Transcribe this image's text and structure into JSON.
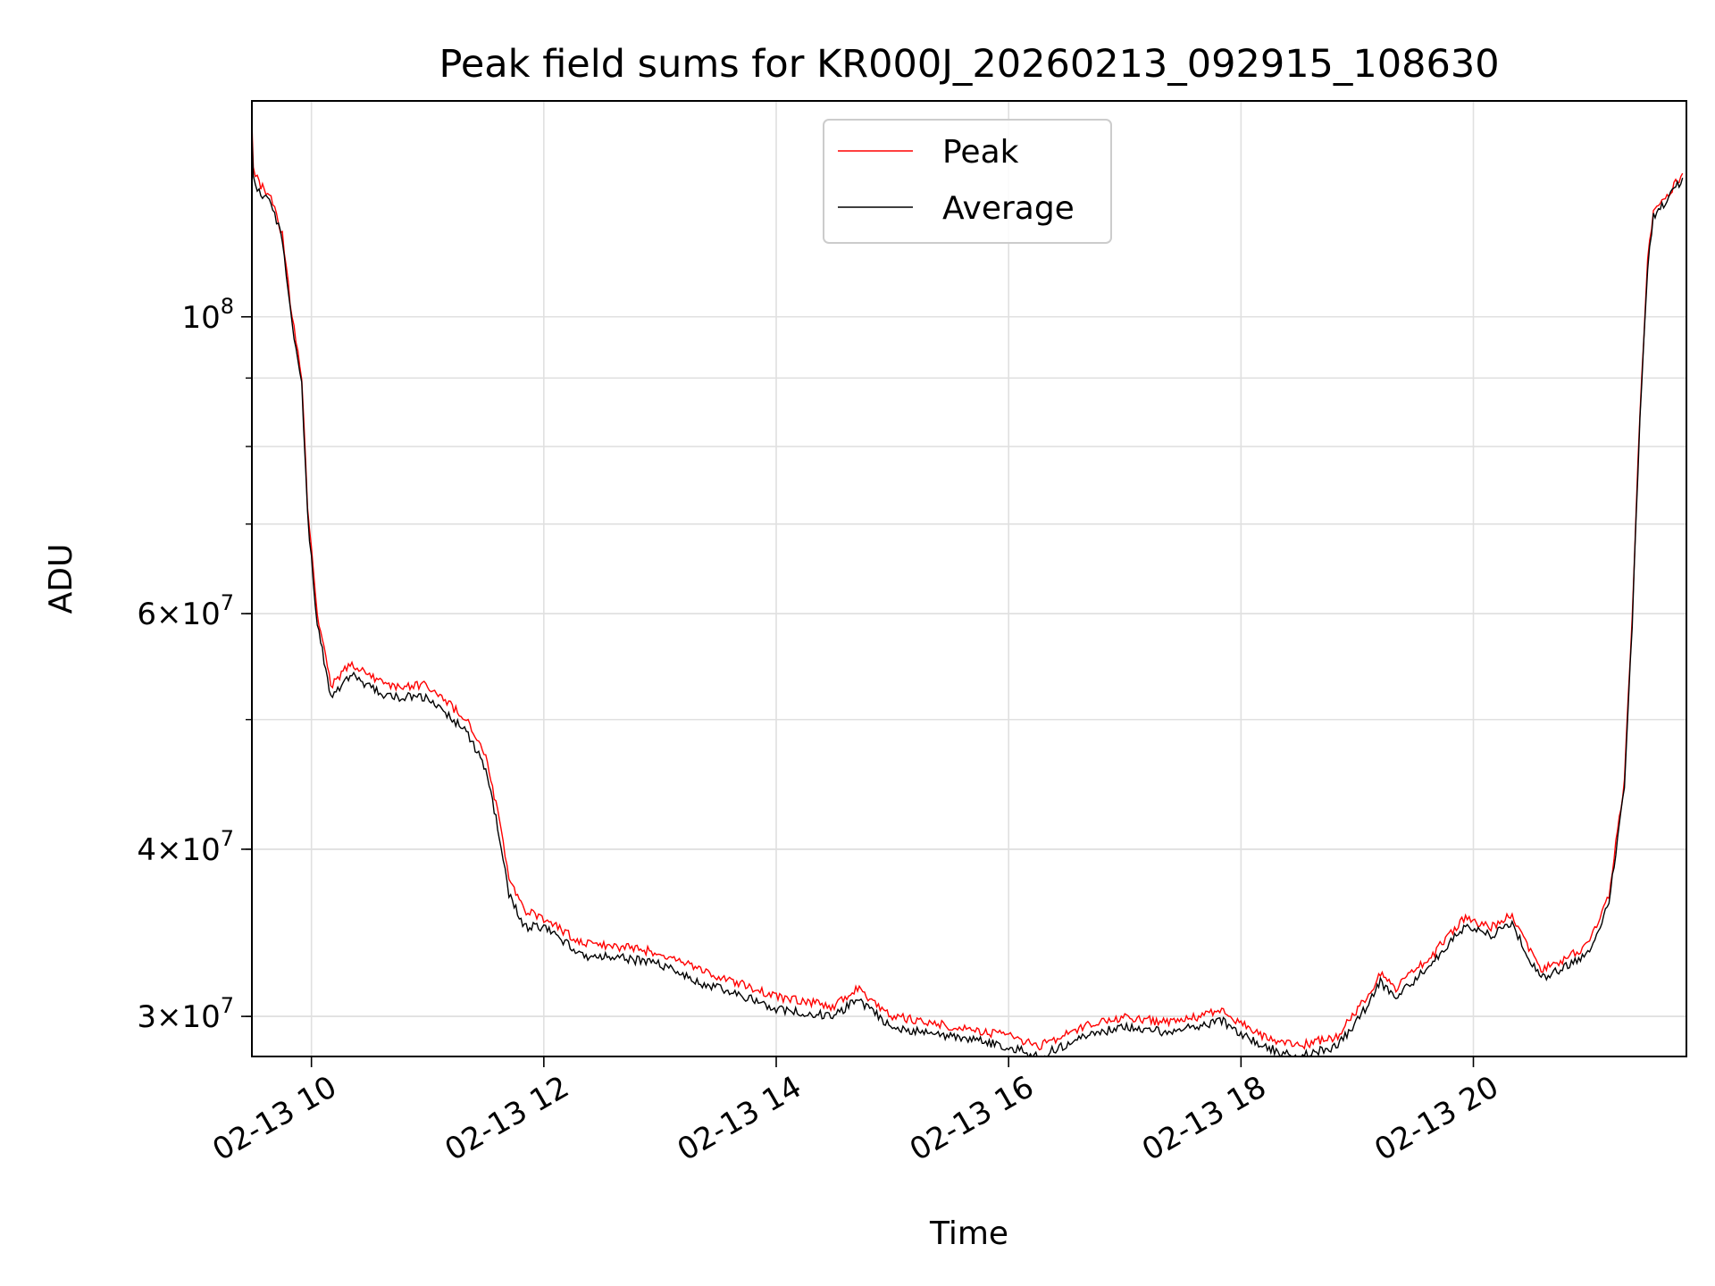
{
  "chart_data": {
    "type": "line",
    "title": "Peak field sums for KR000J_20260213_092915_108630",
    "xlabel": "Time",
    "ylabel": "ADU",
    "yscale": "log",
    "grid": true,
    "legend_position": "top-center",
    "xlim": [
      "2026-02-13 09:29:15",
      "2026-02-13 21:50:00"
    ],
    "ylim": [
      28000000,
      145000000
    ],
    "x_ticks": [
      {
        "x": "2026-02-13 10:00",
        "label": "02-13 10"
      },
      {
        "x": "2026-02-13 12:00",
        "label": "02-13 12"
      },
      {
        "x": "2026-02-13 14:00",
        "label": "02-13 14"
      },
      {
        "x": "2026-02-13 16:00",
        "label": "02-13 16"
      },
      {
        "x": "2026-02-13 18:00",
        "label": "02-13 18"
      },
      {
        "x": "2026-02-13 20:00",
        "label": "02-13 20"
      }
    ],
    "y_major_ticks": [
      {
        "value": 100000000,
        "base": "10",
        "exp": "8",
        "mantissa": ""
      },
      {
        "value": 60000000,
        "base": "10",
        "exp": "7",
        "mantissa": "6×"
      },
      {
        "value": 40000000,
        "base": "10",
        "exp": "7",
        "mantissa": "4×"
      },
      {
        "value": 30000000,
        "base": "10",
        "exp": "7",
        "mantissa": "3×"
      }
    ],
    "y_minor_ticks": [
      30000000,
      40000000,
      50000000,
      60000000,
      70000000,
      80000000,
      90000000
    ],
    "series": [
      {
        "name": "Peak",
        "color": "#ff0000",
        "x": [
          "2026-02-13 09:29",
          "2026-02-13 09:30",
          "2026-02-13 09:33",
          "2026-02-13 09:40",
          "2026-02-13 09:45",
          "2026-02-13 09:50",
          "2026-02-13 09:55",
          "2026-02-13 09:58",
          "2026-02-13 10:03",
          "2026-02-13 10:10",
          "2026-02-13 10:20",
          "2026-02-13 10:40",
          "2026-02-13 11:00",
          "2026-02-13 11:20",
          "2026-02-13 11:30",
          "2026-02-13 11:37",
          "2026-02-13 11:42",
          "2026-02-13 11:50",
          "2026-02-13 12:00",
          "2026-02-13 12:20",
          "2026-02-13 12:40",
          "2026-02-13 13:00",
          "2026-02-13 13:20",
          "2026-02-13 13:35",
          "2026-02-13 14:00",
          "2026-02-13 14:30",
          "2026-02-13 14:42",
          "2026-02-13 15:00",
          "2026-02-13 15:30",
          "2026-02-13 16:00",
          "2026-02-13 16:15",
          "2026-02-13 16:40",
          "2026-02-13 17:00",
          "2026-02-13 17:20",
          "2026-02-13 17:40",
          "2026-02-13 17:50",
          "2026-02-13 18:10",
          "2026-02-13 18:30",
          "2026-02-13 18:50",
          "2026-02-13 19:05",
          "2026-02-13 19:12",
          "2026-02-13 19:20",
          "2026-02-13 19:40",
          "2026-02-13 19:55",
          "2026-02-13 20:10",
          "2026-02-13 20:20",
          "2026-02-13 20:25",
          "2026-02-13 20:35",
          "2026-02-13 20:45",
          "2026-02-13 21:00",
          "2026-02-13 21:10",
          "2026-02-13 21:18",
          "2026-02-13 21:22",
          "2026-02-13 21:26",
          "2026-02-13 21:30",
          "2026-02-13 21:33",
          "2026-02-13 21:40",
          "2026-02-13 21:48"
        ],
        "values": [
          145000000,
          129000000,
          126000000,
          122000000,
          115000000,
          100000000,
          90000000,
          72000000,
          60000000,
          53000000,
          55000000,
          53000000,
          53000000,
          50000000,
          47000000,
          42000000,
          38000000,
          36000000,
          35500000,
          34000000,
          33800000,
          33500000,
          32500000,
          32000000,
          31000000,
          30500000,
          31500000,
          30000000,
          29500000,
          29000000,
          28500000,
          29500000,
          30000000,
          29700000,
          30000000,
          30300000,
          29000000,
          28500000,
          29000000,
          31000000,
          32300000,
          31500000,
          33500000,
          35500000,
          35000000,
          35800000,
          34500000,
          32500000,
          33000000,
          34000000,
          37000000,
          45000000,
          60000000,
          85000000,
          110000000,
          120000000,
          123000000,
          128000000
        ]
      },
      {
        "name": "Average",
        "color": "#000000",
        "x": [
          "2026-02-13 09:29",
          "2026-02-13 09:30",
          "2026-02-13 09:33",
          "2026-02-13 09:40",
          "2026-02-13 09:45",
          "2026-02-13 09:50",
          "2026-02-13 09:55",
          "2026-02-13 09:58",
          "2026-02-13 10:03",
          "2026-02-13 10:10",
          "2026-02-13 10:20",
          "2026-02-13 10:40",
          "2026-02-13 11:00",
          "2026-02-13 11:20",
          "2026-02-13 11:30",
          "2026-02-13 11:37",
          "2026-02-13 11:42",
          "2026-02-13 11:50",
          "2026-02-13 12:00",
          "2026-02-13 12:20",
          "2026-02-13 12:40",
          "2026-02-13 13:00",
          "2026-02-13 13:20",
          "2026-02-13 13:35",
          "2026-02-13 14:00",
          "2026-02-13 14:30",
          "2026-02-13 14:42",
          "2026-02-13 15:00",
          "2026-02-13 15:30",
          "2026-02-13 16:00",
          "2026-02-13 16:15",
          "2026-02-13 16:40",
          "2026-02-13 17:00",
          "2026-02-13 17:20",
          "2026-02-13 17:40",
          "2026-02-13 17:50",
          "2026-02-13 18:10",
          "2026-02-13 18:30",
          "2026-02-13 18:50",
          "2026-02-13 19:05",
          "2026-02-13 19:12",
          "2026-02-13 19:20",
          "2026-02-13 19:40",
          "2026-02-13 19:55",
          "2026-02-13 20:10",
          "2026-02-13 20:20",
          "2026-02-13 20:25",
          "2026-02-13 20:35",
          "2026-02-13 20:45",
          "2026-02-13 21:00",
          "2026-02-13 21:10",
          "2026-02-13 21:18",
          "2026-02-13 21:22",
          "2026-02-13 21:26",
          "2026-02-13 21:30",
          "2026-02-13 21:33",
          "2026-02-13 21:40",
          "2026-02-13 21:48"
        ],
        "values": [
          140000000,
          127000000,
          124000000,
          121000000,
          114000000,
          99000000,
          89000000,
          71000000,
          59000000,
          52000000,
          54000000,
          52000000,
          52000000,
          49000000,
          46000000,
          41000000,
          37000000,
          35000000,
          35000000,
          33300000,
          33200000,
          32800000,
          31800000,
          31400000,
          30400000,
          30000000,
          30900000,
          29400000,
          29000000,
          28500000,
          28000000,
          29000000,
          29500000,
          29200000,
          29500000,
          29800000,
          28500000,
          28000000,
          28500000,
          30500000,
          31800000,
          31000000,
          33000000,
          35000000,
          34500000,
          35300000,
          34000000,
          32000000,
          32500000,
          33500000,
          36500000,
          44500000,
          59000000,
          84000000,
          109000000,
          119000000,
          122000000,
          127000000
        ]
      }
    ]
  }
}
